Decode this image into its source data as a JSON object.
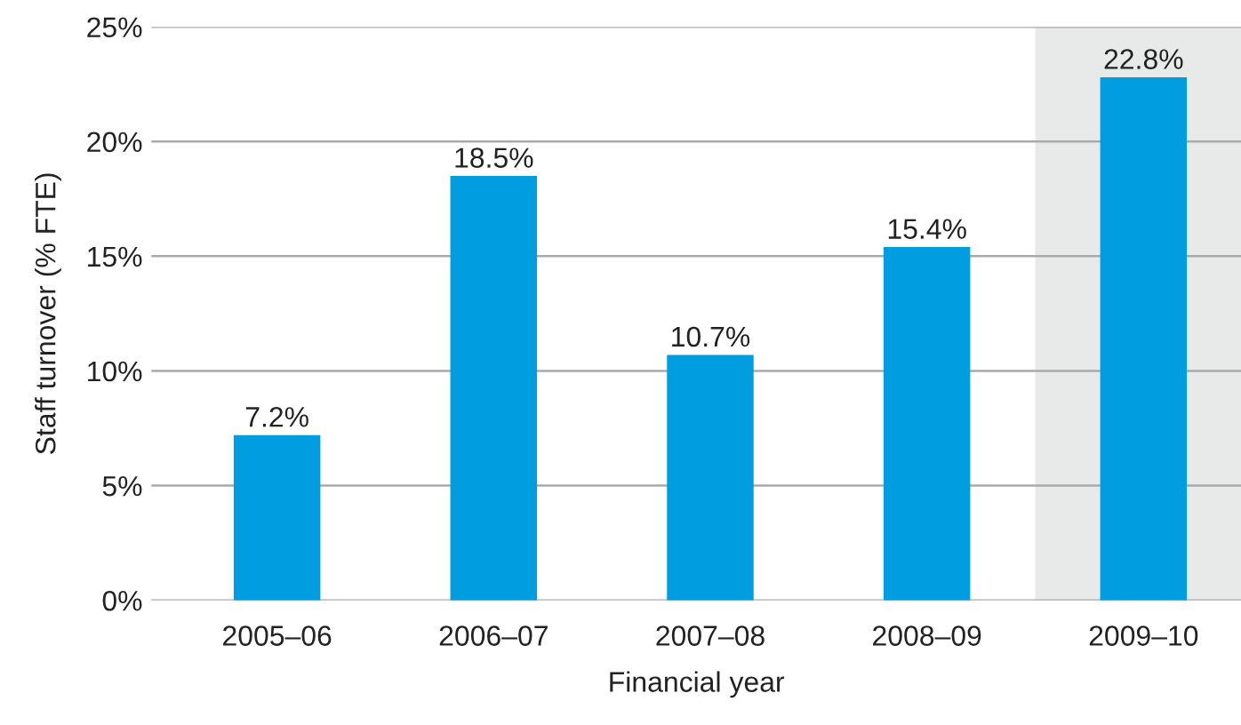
{
  "chart_data": {
    "type": "bar",
    "xlabel": "Financial year",
    "ylabel": "Staff turnover (% FTE)",
    "categories": [
      "2005–06",
      "2006–07",
      "2007–08",
      "2008–09",
      "2009–10"
    ],
    "values": [
      7.2,
      18.5,
      10.7,
      15.4,
      22.8
    ],
    "value_labels": [
      "7.2%",
      "18.5%",
      "10.7%",
      "15.4%",
      "22.8%"
    ],
    "color": "#009ee0",
    "ylim": [
      0,
      25
    ],
    "yticks": [
      {
        "value": 0,
        "label": "0%"
      },
      {
        "value": 5,
        "label": "5%"
      },
      {
        "value": 10,
        "label": "10%"
      },
      {
        "value": 15,
        "label": "15%"
      },
      {
        "value": 20,
        "label": "20%"
      },
      {
        "value": 25,
        "label": "25%"
      }
    ],
    "grid": "y",
    "bands": [
      {
        "axis": "x",
        "from": "2009–10",
        "to": "2009–10",
        "color": "#e8eae9"
      }
    ]
  }
}
